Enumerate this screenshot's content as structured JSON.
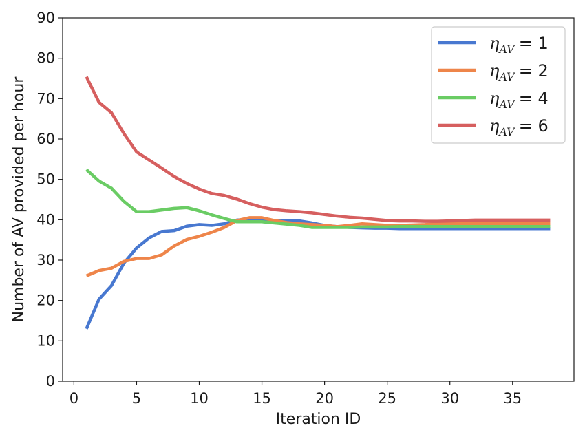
{
  "chart_data": {
    "type": "line",
    "title": "",
    "xlabel": "Iteration ID",
    "ylabel": "Number of AV provided per hour",
    "xlim": [
      -0.9,
      39.9
    ],
    "ylim": [
      0,
      90
    ],
    "xticks": [
      0,
      5,
      10,
      15,
      20,
      25,
      30,
      35
    ],
    "yticks": [
      0,
      10,
      20,
      30,
      40,
      50,
      60,
      70,
      80,
      90
    ],
    "grid": false,
    "legend_position": "top-right",
    "x": [
      1,
      2,
      3,
      4,
      5,
      6,
      7,
      8,
      9,
      10,
      11,
      12,
      13,
      14,
      15,
      16,
      17,
      18,
      19,
      20,
      21,
      22,
      23,
      24,
      25,
      26,
      27,
      28,
      29,
      30,
      31,
      32,
      33,
      34,
      35,
      36,
      37,
      38
    ],
    "series": [
      {
        "name": "η_AV = 1",
        "legend_symbol": "η",
        "legend_subscript": "AV",
        "legend_value": "= 1",
        "color": "#4878d0",
        "values": [
          13.0,
          20.3,
          23.7,
          29.3,
          33.0,
          35.5,
          37.1,
          37.3,
          38.4,
          38.8,
          38.6,
          39.0,
          39.9,
          40.1,
          39.9,
          39.7,
          39.7,
          39.7,
          39.2,
          38.6,
          38.3,
          38.1,
          38.0,
          37.9,
          37.9,
          37.8,
          37.8,
          37.8,
          37.8,
          37.8,
          37.8,
          37.8,
          37.8,
          37.8,
          37.8,
          37.8,
          37.8,
          37.8
        ]
      },
      {
        "name": "η_AV = 2",
        "legend_symbol": "η",
        "legend_subscript": "AV",
        "legend_value": "= 2",
        "color": "#ee854a",
        "values": [
          26.1,
          27.4,
          28.0,
          29.7,
          30.4,
          30.4,
          31.3,
          33.5,
          35.1,
          35.9,
          36.9,
          38.1,
          39.8,
          40.5,
          40.5,
          39.8,
          39.3,
          39.0,
          38.8,
          38.6,
          38.3,
          38.6,
          39.0,
          38.8,
          38.6,
          38.6,
          38.7,
          38.8,
          39.0,
          39.0,
          39.0,
          39.0,
          39.0,
          39.0,
          39.0,
          39.0,
          39.0,
          39.0
        ]
      },
      {
        "name": "η_AV = 4",
        "legend_symbol": "η",
        "legend_subscript": "AV",
        "legend_value": "= 4",
        "color": "#6acc64",
        "values": [
          52.4,
          49.6,
          47.8,
          44.5,
          42.0,
          42.0,
          42.4,
          42.8,
          43.0,
          42.2,
          41.2,
          40.3,
          39.5,
          39.5,
          39.5,
          39.2,
          38.9,
          38.6,
          38.1,
          38.1,
          38.1,
          38.1,
          38.2,
          38.2,
          38.2,
          38.3,
          38.3,
          38.3,
          38.3,
          38.3,
          38.3,
          38.3,
          38.3,
          38.3,
          38.3,
          38.3,
          38.3,
          38.3
        ]
      },
      {
        "name": "η_AV = 6",
        "legend_symbol": "η",
        "legend_subscript": "AV",
        "legend_value": "= 6",
        "color": "#d65f5f",
        "values": [
          75.4,
          69.1,
          66.5,
          61.3,
          56.8,
          54.8,
          52.8,
          50.7,
          49.0,
          47.6,
          46.5,
          46.0,
          45.1,
          44.0,
          43.1,
          42.5,
          42.2,
          42.0,
          41.7,
          41.3,
          40.9,
          40.6,
          40.4,
          40.1,
          39.8,
          39.7,
          39.7,
          39.6,
          39.6,
          39.7,
          39.8,
          39.9,
          39.9,
          39.9,
          39.9,
          39.9,
          39.9,
          39.9
        ]
      }
    ]
  }
}
